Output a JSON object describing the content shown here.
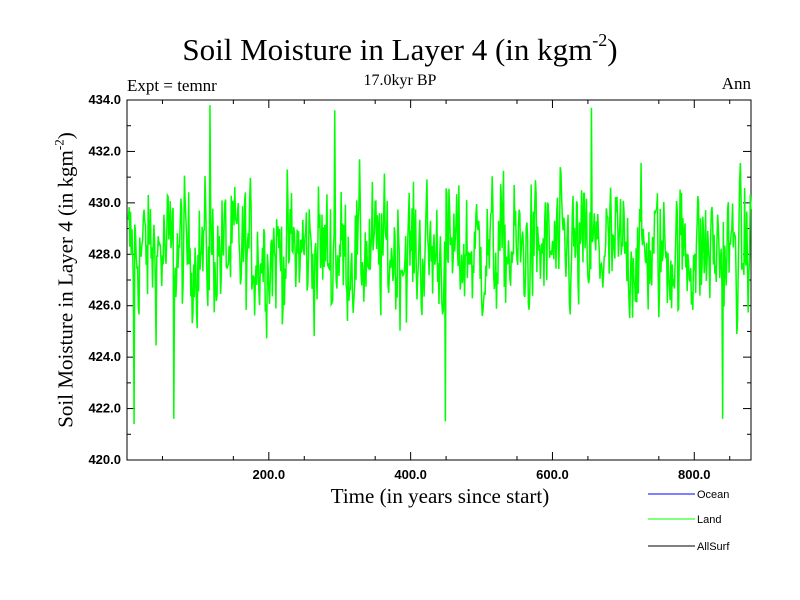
{
  "chart_data": {
    "type": "line",
    "title_main": "Soil Moisture in Layer 4 (in kgm",
    "title_sup": "-2",
    "title_close": ")",
    "subtitle": "17.0kyr BP",
    "experiment_label": "Expt = temnr",
    "season_label": "Ann",
    "xlabel": "Time (in years since start)",
    "ylabel_main": "Soil Moisture in Layer 4 (in kgm",
    "ylabel_sup": "-2",
    "ylabel_close": ")",
    "xlim": [
      0,
      880
    ],
    "ylim": [
      420,
      434
    ],
    "xticks": [
      200,
      400,
      600,
      800
    ],
    "xtick_labels": [
      "200.0",
      "400.0",
      "600.0",
      "800.0"
    ],
    "yticks": [
      420,
      422,
      424,
      426,
      428,
      430,
      432,
      434
    ],
    "ytick_labels": [
      "420.0",
      "422.0",
      "424.0",
      "426.0",
      "428.0",
      "430.0",
      "432.0",
      "434.0"
    ],
    "legend_position": "bottom-right",
    "series": [
      {
        "name": "Ocean",
        "color": "#0000ff",
        "values": []
      },
      {
        "name": "Land",
        "color": "#00ff00",
        "values": [],
        "approx": {
          "start": 1,
          "end": 880,
          "mean": 428.1,
          "min": 421.4,
          "max": 433.8,
          "spread": 1.9
        }
      },
      {
        "name": "AllSurf",
        "color": "#000000",
        "values": []
      }
    ],
    "notable_points": [
      {
        "x": 10,
        "y": 421.4
      },
      {
        "x": 66,
        "y": 421.6
      },
      {
        "x": 117,
        "y": 433.8
      },
      {
        "x": 293,
        "y": 433.6
      },
      {
        "x": 449,
        "y": 421.5
      },
      {
        "x": 655,
        "y": 433.7
      },
      {
        "x": 840,
        "y": 421.6
      }
    ]
  }
}
